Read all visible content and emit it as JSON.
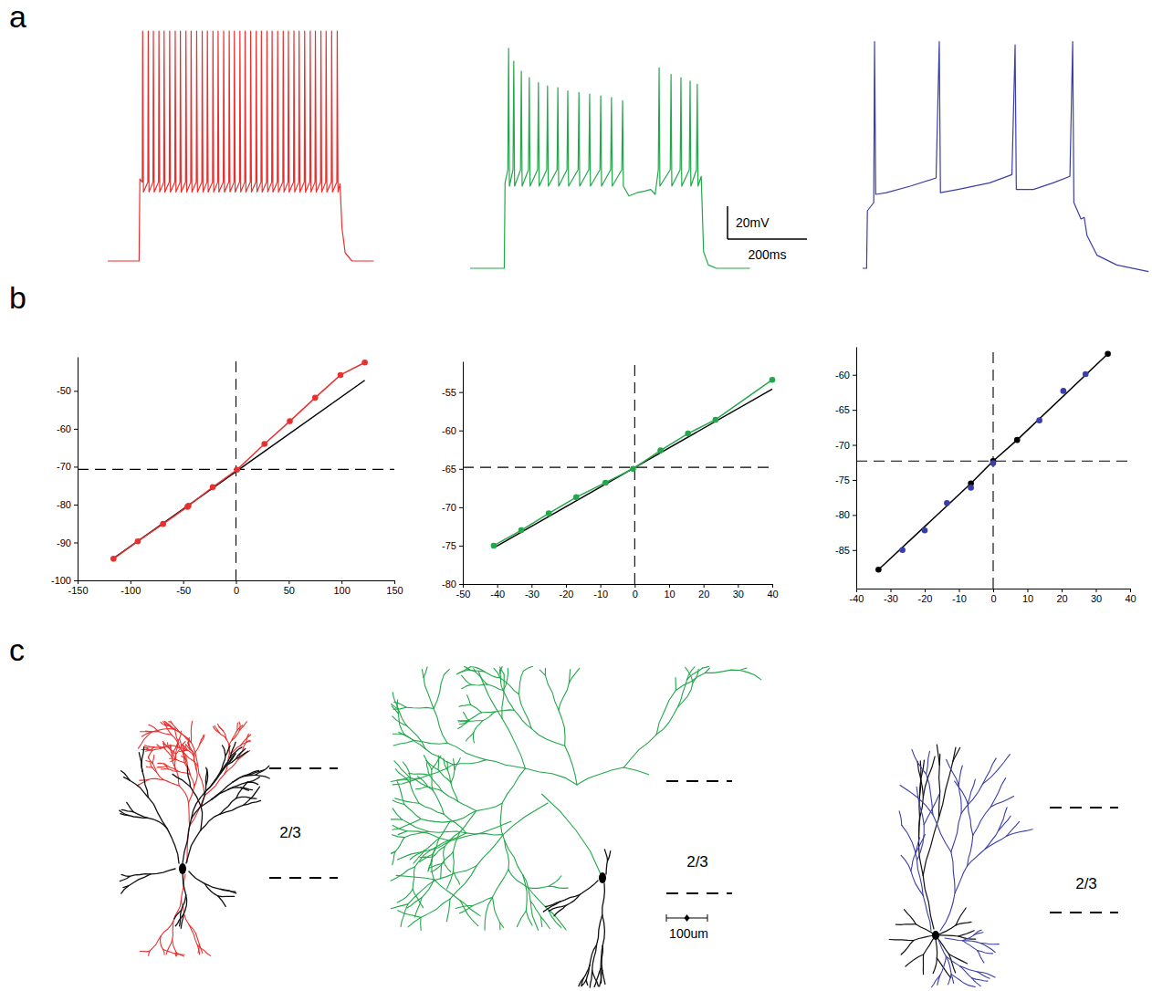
{
  "panel_letters": [
    "a",
    "b",
    "c"
  ],
  "chart_data": [
    {
      "type": "line",
      "tick_labels": false,
      "x": [
        0,
        79,
        81,
        87,
        88,
        90,
        101,
        102,
        104,
        114,
        115,
        117,
        128,
        129,
        131,
        141,
        142,
        144,
        155,
        156,
        158,
        169,
        170,
        172,
        182,
        183,
        185,
        196,
        197,
        199,
        209,
        210,
        212,
        223,
        224,
        226,
        237,
        238,
        240,
        250,
        251,
        253,
        264,
        265,
        267,
        277,
        278,
        280,
        291,
        292,
        294,
        305,
        306,
        308,
        318,
        319,
        321,
        332,
        333,
        335,
        345,
        346,
        348,
        359,
        360,
        362,
        373,
        374,
        376,
        386,
        387,
        389,
        400,
        401,
        403,
        413,
        414,
        416,
        427,
        428,
        430,
        441,
        442,
        444,
        454,
        455,
        457,
        468,
        469,
        471,
        481,
        482,
        484,
        495,
        496,
        498,
        509,
        510,
        512,
        522,
        523,
        525,
        536,
        537,
        539,
        549,
        550,
        552,
        563,
        564,
        566,
        577,
        578,
        580,
        585,
        590,
        598,
        615,
        670
      ],
      "series": [
        {
          "color": "#e8312f",
          "values": [
            0,
            0,
            50,
            48,
            140,
            42,
            48,
            140,
            42,
            48,
            140,
            42,
            48,
            140,
            42,
            48,
            140,
            42,
            48,
            140,
            42,
            48,
            140,
            42,
            48,
            140,
            42,
            48,
            140,
            42,
            48,
            140,
            42,
            48,
            140,
            42,
            48,
            140,
            42,
            48,
            140,
            42,
            48,
            140,
            42,
            48,
            140,
            42,
            48,
            140,
            42,
            48,
            140,
            42,
            48,
            140,
            42,
            48,
            140,
            42,
            48,
            140,
            42,
            48,
            140,
            42,
            48,
            140,
            42,
            48,
            140,
            42,
            48,
            140,
            42,
            48,
            140,
            42,
            48,
            140,
            42,
            48,
            140,
            42,
            48,
            140,
            42,
            48,
            140,
            42,
            48,
            140,
            42,
            48,
            140,
            42,
            48,
            140,
            42,
            48,
            140,
            42,
            48,
            140,
            42,
            48,
            140,
            42,
            48,
            140,
            42,
            48,
            140,
            42,
            47,
            20,
            5,
            0,
            0
          ]
        }
      ]
    },
    {
      "type": "line",
      "tick_labels": false,
      "x": [
        0,
        86,
        88,
        95,
        97,
        99,
        108,
        110,
        112,
        127,
        129,
        131,
        147,
        149,
        151,
        170,
        172,
        174,
        193,
        195,
        197,
        219,
        221,
        223,
        244,
        246,
        248,
        272,
        274,
        276,
        299,
        301,
        303,
        327,
        329,
        331,
        354,
        356,
        358,
        382,
        384,
        386,
        400,
        420,
        440,
        455,
        466,
        474,
        476,
        478,
        504,
        506,
        508,
        529,
        531,
        533,
        552,
        554,
        556,
        570,
        572,
        574,
        582,
        588,
        600,
        620,
        705
      ],
      "series": [
        {
          "color": "#22a84a",
          "values": [
            0,
            0,
            52,
            60,
            134,
            50,
            60,
            126,
            50,
            60,
            120,
            50,
            60,
            116,
            50,
            60,
            113,
            50,
            60,
            111,
            50,
            60,
            110,
            50,
            60,
            108,
            50,
            60,
            107,
            50,
            60,
            106,
            50,
            60,
            105,
            50,
            60,
            104,
            50,
            60,
            102,
            50,
            44,
            46,
            47,
            48,
            45,
            60,
            122,
            50,
            60,
            118,
            50,
            60,
            116,
            50,
            60,
            114,
            50,
            60,
            112,
            50,
            56,
            10,
            2,
            0,
            0
          ]
        }
      ],
      "scale_bar": {
        "x": 200,
        "x_label": "200ms",
        "y": 20,
        "y_label": "20mV"
      }
    },
    {
      "type": "line",
      "tick_labels": false,
      "x": [
        0,
        10,
        12,
        28,
        30,
        33,
        60,
        120,
        185,
        193,
        196,
        240,
        320,
        376,
        384,
        387,
        430,
        480,
        522,
        529,
        532,
        550,
        558,
        565,
        590,
        640,
        720
      ],
      "series": [
        {
          "color": "#3b3ea6",
          "values": [
            0,
            0,
            35,
            40,
            138,
            45,
            46,
            50,
            55,
            138,
            46,
            48,
            52,
            57,
            136,
            48,
            48,
            52,
            56,
            138,
            40,
            30,
            31,
            20,
            8,
            2,
            -2
          ]
        }
      ]
    },
    {
      "type": "scatter",
      "xlim": [
        -150,
        150
      ],
      "xticks": [
        -150,
        -100,
        -50,
        0,
        50,
        100,
        150
      ],
      "ylim": [
        -100,
        -41
      ],
      "yticks": [
        -100,
        -90,
        -80,
        -70,
        -60,
        -50
      ],
      "reference_lines": {
        "x": [
          0
        ],
        "y": [
          -70.7
        ]
      },
      "series": [
        {
          "type": "line",
          "color": "#000000",
          "x": [
            -116,
            122
          ],
          "values": [
            -94.2,
            -47.2
          ]
        },
        {
          "type": "line",
          "marker": "circle",
          "color": "#e8312f",
          "x": [
            -116,
            -93,
            -69,
            -46,
            -45,
            -22,
            1,
            27,
            51,
            75,
            99,
            122
          ],
          "values": [
            -94.3,
            -89.7,
            -85.1,
            -80.6,
            -80.3,
            -75.4,
            -70.8,
            -64,
            -58,
            -51.8,
            -45.8,
            -42.5
          ]
        }
      ]
    },
    {
      "type": "scatter",
      "xlim": [
        -50,
        40
      ],
      "xticks": [
        -50,
        -40,
        -30,
        -20,
        -10,
        0,
        10,
        20,
        30,
        40
      ],
      "ylim": [
        -80,
        -51
      ],
      "yticks": [
        -80,
        -75,
        -70,
        -65,
        -60,
        -55
      ],
      "reference_lines": {
        "x": [
          0
        ],
        "y": [
          -64.8
        ]
      },
      "series": [
        {
          "type": "line",
          "color": "#000000",
          "x": [
            -41,
            40
          ],
          "values": [
            -75.3,
            -54.6
          ]
        },
        {
          "type": "line",
          "marker": "circle",
          "color": "#22a84a",
          "x": [
            -41,
            -33,
            -25,
            -17,
            -8.5,
            -0.5,
            7.5,
            15.5,
            23.5,
            40
          ],
          "values": [
            -75,
            -73,
            -70.8,
            -68.7,
            -66.8,
            -65,
            -62.6,
            -60.4,
            -58.6,
            -53.4
          ]
        }
      ]
    },
    {
      "type": "scatter",
      "xlim": [
        -40,
        40
      ],
      "xticks": [
        -40,
        -30,
        -20,
        -10,
        0,
        10,
        20,
        30,
        40
      ],
      "ylim": [
        -90.5,
        -56
      ],
      "yticks": [
        -85,
        -80,
        -75,
        -70,
        -65,
        -60
      ],
      "reference_lines": {
        "x": [
          0
        ],
        "y": [
          -72.3
        ]
      },
      "series": [
        {
          "type": "line",
          "marker": "circle",
          "color": "#000000",
          "x": [
            -33.5,
            -6.5,
            0,
            7,
            33.5
          ],
          "values": [
            -87.8,
            -75.5,
            -72.3,
            -69.3,
            -57
          ]
        },
        {
          "type": "scatter",
          "marker": "circle",
          "color": "#3b3ea6",
          "x": [
            -26.5,
            -20,
            -13.5,
            -6.5,
            0,
            13.5,
            20.5,
            27
          ],
          "values": [
            -85,
            -82.2,
            -78.3,
            -76.1,
            -72.6,
            -66.5,
            -62.3,
            -59.9
          ]
        }
      ]
    }
  ],
  "morphology": {
    "layer_labels": [
      "2/3",
      "2/3",
      "2/3"
    ],
    "scale_bar": {
      "value": 100,
      "label": "100um"
    }
  }
}
